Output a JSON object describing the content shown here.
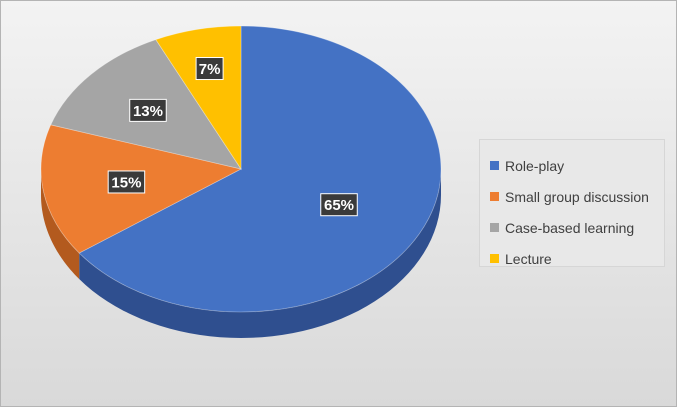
{
  "chart_data": {
    "type": "pie",
    "style": "3d",
    "categories": [
      "Role-play",
      "Small group discussion",
      "Case-based learning",
      "Lecture"
    ],
    "values": [
      65,
      15,
      13,
      7
    ],
    "data_labels": [
      "65%",
      "15%",
      "13%",
      "7%"
    ],
    "colors": [
      "#4472C4",
      "#ED7D31",
      "#A5A5A5",
      "#FFC000"
    ],
    "side_colors": [
      "#2F4F8F",
      "#B35A1E",
      "#7A7A7A",
      "#BF9000"
    ],
    "title": "",
    "legend_position": "right"
  }
}
